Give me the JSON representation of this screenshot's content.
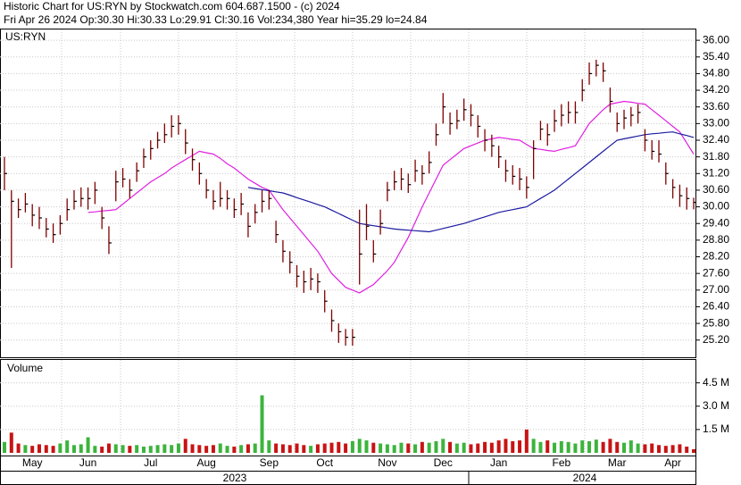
{
  "chart_data": [
    {
      "type": "hlc",
      "title": "Historic Chart for US:RYN by Stockwatch.com 604.687.1500 - (c) 2024",
      "subtitle": "Fri Apr 26 2024  Op:30.30  Hi:30.33  Lo:29.91  Cl:30.16  Vol:234,380  Year hi=35.29  lo=24.84",
      "label": "US:RYN",
      "color": "#800000",
      "high": [
        31.8,
        30.6,
        30.3,
        30.5,
        30.1,
        30.0,
        29.6,
        29.4,
        29.7,
        30.3,
        30.6,
        30.7,
        30.7,
        30.9,
        30.0,
        29.3,
        31.3,
        31.4,
        31.0,
        31.6,
        32.1,
        32.4,
        32.7,
        33.0,
        33.3,
        33.3,
        32.8,
        32.1,
        31.6,
        31.0,
        30.6,
        30.9,
        30.6,
        30.3,
        30.5,
        29.8,
        30.1,
        30.6,
        30.6,
        29.5,
        28.8,
        28.4,
        27.9,
        27.7,
        27.8,
        27.6,
        27.0,
        26.3,
        25.8,
        25.6,
        25.6,
        29.9,
        30.1,
        28.8,
        29.9,
        30.9,
        31.3,
        31.4,
        31.2,
        31.7,
        31.5,
        32.0,
        33.0,
        34.1,
        33.4,
        33.5,
        33.9,
        33.7,
        33.3,
        32.8,
        32.6,
        32.2,
        31.7,
        31.5,
        31.4,
        31.1,
        32.4,
        33.1,
        33.0,
        33.5,
        33.7,
        33.8,
        33.8,
        34.6,
        35.2,
        35.3,
        35.2,
        34.3,
        33.4,
        33.5,
        33.6,
        33.7,
        32.8,
        32.4,
        32.4,
        31.6,
        31.0,
        30.8,
        30.7,
        30.33
      ],
      "low": [
        30.6,
        27.8,
        29.6,
        29.8,
        29.3,
        29.2,
        28.9,
        28.7,
        29.0,
        29.5,
        29.9,
        30.0,
        29.9,
        30.1,
        29.2,
        28.3,
        30.2,
        30.7,
        30.3,
        30.9,
        31.4,
        31.7,
        32.1,
        32.3,
        32.5,
        32.6,
        31.9,
        31.3,
        30.8,
        30.3,
        29.9,
        30.0,
        29.9,
        29.6,
        29.7,
        28.9,
        29.4,
        29.8,
        29.9,
        28.7,
        28.0,
        27.6,
        27.1,
        26.9,
        27.0,
        26.9,
        26.2,
        25.5,
        25.1,
        25.0,
        25.0,
        27.2,
        28.8,
        28.0,
        29.0,
        30.2,
        30.6,
        30.6,
        30.5,
        30.9,
        30.8,
        31.2,
        32.2,
        33.0,
        32.6,
        32.8,
        33.1,
        32.9,
        32.5,
        32.0,
        31.8,
        31.4,
        30.9,
        30.8,
        30.6,
        30.3,
        31.0,
        32.4,
        32.2,
        32.7,
        32.9,
        33.0,
        33.0,
        33.8,
        34.4,
        34.7,
        34.5,
        33.4,
        32.7,
        32.8,
        32.9,
        33.0,
        32.0,
        31.7,
        31.6,
        30.8,
        30.3,
        30.0,
        29.9,
        29.91
      ],
      "close": [
        31.2,
        30.2,
        29.9,
        30.1,
        29.7,
        29.6,
        29.2,
        29.0,
        29.4,
        29.9,
        30.2,
        30.3,
        30.3,
        30.6,
        29.6,
        28.7,
        30.9,
        31.0,
        30.6,
        31.3,
        31.8,
        32.1,
        32.4,
        32.6,
        32.9,
        33.0,
        32.3,
        31.7,
        31.2,
        30.6,
        30.2,
        30.3,
        30.3,
        29.9,
        30.1,
        29.3,
        29.8,
        30.2,
        30.3,
        29.0,
        28.4,
        28.0,
        27.5,
        27.3,
        27.4,
        27.3,
        26.6,
        25.9,
        25.5,
        25.3,
        25.3,
        28.3,
        29.3,
        28.3,
        29.4,
        30.6,
        30.9,
        31.0,
        30.8,
        31.3,
        31.2,
        31.6,
        32.6,
        33.6,
        33.0,
        33.1,
        33.5,
        33.3,
        32.9,
        32.4,
        32.2,
        31.8,
        31.3,
        31.1,
        31.0,
        30.7,
        32.1,
        32.8,
        32.6,
        33.1,
        33.3,
        33.4,
        33.4,
        34.2,
        34.8,
        35.1,
        34.9,
        33.8,
        33.0,
        33.2,
        33.3,
        33.4,
        32.4,
        32.0,
        31.9,
        31.2,
        30.7,
        30.4,
        30.3,
        30.16
      ],
      "lines": [
        {
          "color": "#e020e0",
          "values": [
            null,
            null,
            null,
            null,
            null,
            null,
            null,
            null,
            null,
            null,
            null,
            null,
            29.8,
            29.82,
            29.85,
            29.87,
            29.9,
            30.1,
            30.3,
            30.5,
            30.7,
            30.9,
            31.05,
            31.2,
            31.4,
            31.55,
            31.7,
            31.85,
            32.0,
            31.95,
            31.9,
            31.75,
            31.55,
            31.4,
            31.2,
            31.0,
            30.85,
            30.7,
            30.6,
            30.25,
            29.9,
            29.6,
            29.3,
            29.0,
            28.7,
            28.4,
            28.0,
            27.6,
            27.35,
            27.1,
            27.0,
            26.9,
            27.05,
            27.2,
            27.45,
            27.7,
            28.0,
            28.45,
            28.9,
            29.45,
            30.0,
            30.5,
            31.0,
            31.5,
            31.7,
            31.9,
            32.1,
            32.2,
            32.3,
            32.4,
            32.45,
            32.5,
            32.47,
            32.43,
            32.4,
            32.25,
            32.1,
            32.07,
            32.03,
            32.0,
            32.07,
            32.13,
            32.2,
            32.6,
            33.0,
            33.25,
            33.5,
            33.7,
            33.75,
            33.8,
            33.77,
            33.73,
            33.7,
            33.5,
            33.3,
            33.1,
            32.9,
            32.7,
            32.3,
            31.9
          ]
        },
        {
          "color": "#1a1aa0",
          "values": [
            null,
            null,
            null,
            null,
            null,
            null,
            null,
            null,
            null,
            null,
            null,
            null,
            null,
            null,
            null,
            null,
            null,
            null,
            null,
            null,
            null,
            null,
            null,
            null,
            null,
            null,
            null,
            null,
            null,
            null,
            null,
            null,
            null,
            null,
            null,
            30.7,
            30.66,
            30.62,
            30.58,
            30.54,
            30.5,
            30.42,
            30.33,
            30.25,
            30.17,
            30.08,
            30.0,
            29.88,
            29.76,
            29.64,
            29.52,
            29.4,
            29.36,
            29.32,
            29.28,
            29.24,
            29.2,
            29.18,
            29.16,
            29.14,
            29.12,
            29.1,
            29.16,
            29.22,
            29.28,
            29.34,
            29.4,
            29.48,
            29.56,
            29.64,
            29.72,
            29.8,
            29.85,
            29.9,
            29.95,
            30.0,
            30.15,
            30.3,
            30.45,
            30.6,
            30.8,
            31.0,
            31.2,
            31.4,
            31.6,
            31.8,
            32.0,
            32.2,
            32.4,
            32.45,
            32.5,
            32.55,
            32.6,
            32.63,
            32.65,
            32.68,
            32.7,
            32.63,
            32.57,
            32.5
          ]
        }
      ],
      "ylim": [
        24.58,
        36.39
      ],
      "yticks": [
        {
          "value": 25.2,
          "label": "25.20"
        },
        {
          "value": 25.8,
          "label": "25.80"
        },
        {
          "value": 26.4,
          "label": "26.40"
        },
        {
          "value": 27,
          "label": "27.00"
        },
        {
          "value": 27.6,
          "label": "27.60"
        },
        {
          "value": 28.2,
          "label": "28.20"
        },
        {
          "value": 28.8,
          "label": "28.80"
        },
        {
          "value": 29.4,
          "label": "29.40"
        },
        {
          "value": 30,
          "label": "30.00"
        },
        {
          "value": 30.6,
          "label": "30.60"
        },
        {
          "value": 31.2,
          "label": "31.20"
        },
        {
          "value": 31.8,
          "label": "31.80"
        },
        {
          "value": 32.4,
          "label": "32.40"
        },
        {
          "value": 33,
          "label": "33.00"
        },
        {
          "value": 33.6,
          "label": "33.60"
        },
        {
          "value": 34.2,
          "label": "34.20"
        },
        {
          "value": 34.8,
          "label": "34.80"
        },
        {
          "value": 35.4,
          "label": "35.40"
        },
        {
          "value": 36,
          "label": "36.00"
        }
      ],
      "grid": true
    },
    {
      "type": "bar",
      "label": "Volume",
      "up_color": "#3cb43c",
      "down_color": "#c81414",
      "categories": [
        null,
        null,
        null,
        null,
        "May",
        null,
        null,
        null,
        null,
        null,
        null,
        null,
        "Jun",
        null,
        null,
        null,
        null,
        null,
        null,
        null,
        null,
        "Jul",
        null,
        null,
        null,
        null,
        null,
        null,
        null,
        "Aug",
        null,
        null,
        null,
        null,
        null,
        null,
        null,
        null,
        "Sep",
        null,
        null,
        null,
        null,
        null,
        null,
        null,
        "Oct",
        null,
        null,
        null,
        null,
        null,
        null,
        null,
        null,
        "Nov",
        null,
        null,
        null,
        null,
        null,
        null,
        null,
        "Dec",
        null,
        null,
        null,
        null,
        null,
        null,
        null,
        "Jan",
        null,
        null,
        null,
        null,
        null,
        null,
        null,
        null,
        "Feb",
        null,
        null,
        null,
        null,
        null,
        null,
        null,
        "Mar",
        null,
        null,
        null,
        null,
        null,
        null,
        null,
        "Apr",
        null,
        null,
        null
      ],
      "year_labels": [
        "2023",
        "2024"
      ],
      "values": [
        700000,
        1300000,
        600000,
        500000,
        450000,
        550000,
        500000,
        450000,
        600000,
        800000,
        500000,
        550000,
        1000000,
        450000,
        400000,
        600000,
        550000,
        500000,
        450000,
        500000,
        400000,
        450000,
        500000,
        550000,
        500000,
        600000,
        900000,
        550000,
        500000,
        450000,
        500000,
        600000,
        450000,
        400000,
        500000,
        550000,
        600000,
        3700000,
        800000,
        600000,
        550000,
        500000,
        600000,
        500000,
        450000,
        550000,
        600000,
        650000,
        700000,
        600000,
        750000,
        900000,
        800000,
        650000,
        600000,
        550000,
        500000,
        650000,
        600000,
        550000,
        700000,
        650000,
        750000,
        900000,
        700000,
        600000,
        650000,
        550000,
        600000,
        700000,
        650000,
        800000,
        900000,
        750000,
        800000,
        1500000,
        900000,
        700000,
        800000,
        650000,
        750000,
        700000,
        600000,
        800000,
        750000,
        850000,
        700000,
        900000,
        700000,
        650000,
        800000,
        600000,
        550000,
        600000,
        500000,
        450000,
        500000,
        550000,
        400000,
        234380
      ],
      "ylim": [
        0,
        5800000
      ],
      "yticks": [
        {
          "value": 1500000,
          "label": "1.5 M"
        },
        {
          "value": 3000000,
          "label": "3.0 M"
        },
        {
          "value": 4500000,
          "label": "4.5 M"
        }
      ],
      "grid": true
    }
  ]
}
